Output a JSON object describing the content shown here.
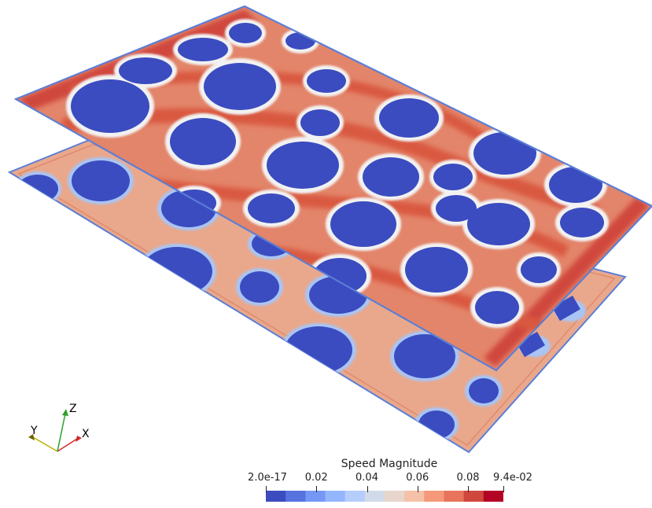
{
  "colorbar": {
    "title": "Speed Magnitude",
    "ticks": [
      {
        "label": "2.0e-17",
        "value": 0.0
      },
      {
        "label": "0.02",
        "value": 0.02
      },
      {
        "label": "0.04",
        "value": 0.04
      },
      {
        "label": "0.06",
        "value": 0.06
      },
      {
        "label": "0.08",
        "value": 0.08
      },
      {
        "label": "9.4e-02",
        "value": 0.094
      }
    ],
    "range": [
      0.0,
      0.094
    ],
    "colormap": [
      "#3b4cc0",
      "#5673e0",
      "#7597f6",
      "#94b6ff",
      "#b5cdfa",
      "#d1dae9",
      "#e8d6cc",
      "#f5c1a9",
      "#f49a7b",
      "#e7745b",
      "#d0473d",
      "#b40426"
    ]
  },
  "axes": {
    "x_label": "X",
    "y_label": "Y",
    "z_label": "Z",
    "x_color": "#d62728",
    "y_color": "#b8b000",
    "z_color": "#2ca02c"
  },
  "colors": {
    "obstacle": "#3b4cc0",
    "obstacle_edge": "#a9c5f5",
    "flow_fast": "#d9583f",
    "flow_mid": "#e3856a",
    "flow_slow": "#e9a88c",
    "edge_blue": "#5b7fd6"
  }
}
